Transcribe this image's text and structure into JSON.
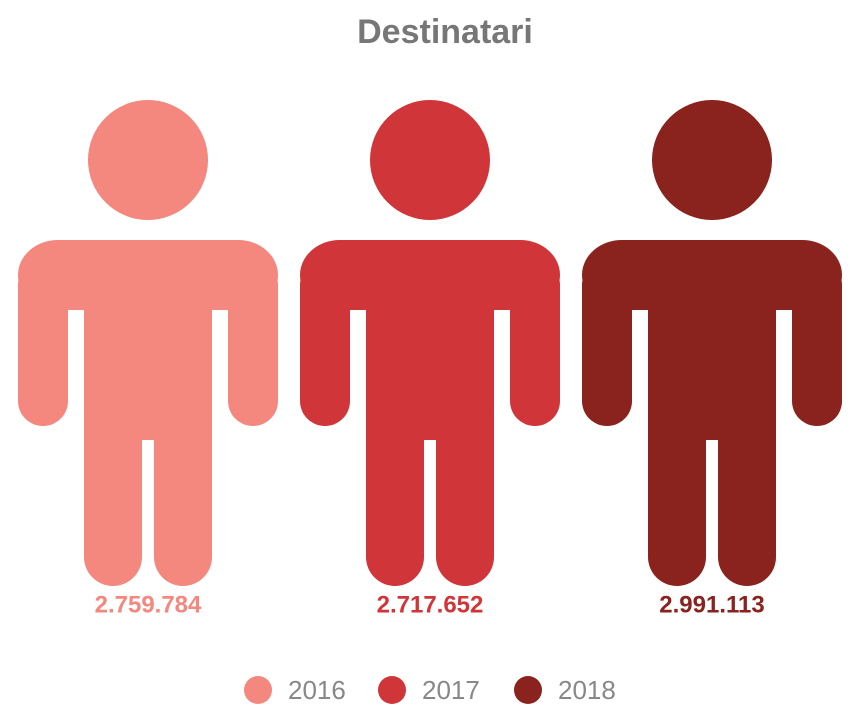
{
  "chart_data": {
    "type": "pictogram",
    "title": "Destinatari",
    "series": [
      {
        "name": "2016",
        "color": "#f4877e",
        "values": [
          2759784
        ],
        "value_labels": [
          "2.759.784"
        ]
      },
      {
        "name": "2017",
        "color": "#cf3539",
        "values": [
          2717652
        ],
        "value_labels": [
          "2.717.652"
        ]
      },
      {
        "name": "2018",
        "color": "#8a221d",
        "values": [
          2991113
        ],
        "value_labels": [
          "2.991.113"
        ]
      }
    ]
  }
}
